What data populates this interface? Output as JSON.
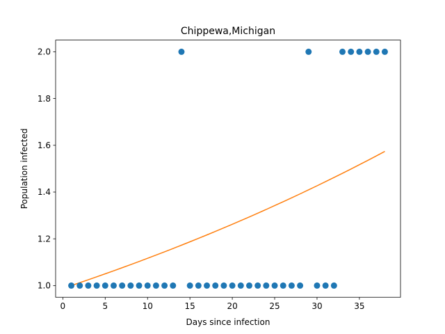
{
  "chart_data": {
    "type": "scatter",
    "title": "Chippewa,Michigan",
    "xlabel": "Days since infection",
    "ylabel": "Population infected",
    "xlim": [
      -0.85,
      39.85
    ],
    "ylim": [
      0.95,
      2.05
    ],
    "xticks": [
      0,
      5,
      10,
      15,
      20,
      25,
      30,
      35
    ],
    "yticks": [
      1.0,
      1.2,
      1.4,
      1.6,
      1.8,
      2.0
    ],
    "xtick_labels": [
      "0",
      "5",
      "10",
      "15",
      "20",
      "25",
      "30",
      "35"
    ],
    "ytick_labels": [
      "1.0",
      "1.2",
      "1.4",
      "1.6",
      "1.8",
      "2.0"
    ],
    "grid": false,
    "series": [
      {
        "kind": "scatter",
        "color": "#1f77b4",
        "x": [
          1,
          2,
          3,
          4,
          5,
          6,
          7,
          8,
          9,
          10,
          11,
          12,
          13,
          14,
          15,
          16,
          17,
          18,
          19,
          20,
          21,
          22,
          23,
          24,
          25,
          26,
          27,
          28,
          29,
          30,
          31,
          32,
          33,
          34,
          35,
          36,
          37,
          38
        ],
        "y": [
          1,
          1,
          1,
          1,
          1,
          1,
          1,
          1,
          1,
          1,
          1,
          1,
          1,
          2,
          1,
          1,
          1,
          1,
          1,
          1,
          1,
          1,
          1,
          1,
          1,
          1,
          1,
          1,
          2,
          1,
          1,
          1,
          2,
          2,
          2,
          2,
          2,
          2
        ]
      },
      {
        "kind": "line",
        "color": "#ff7f0e",
        "x": [
          1,
          2,
          3,
          4,
          5,
          6,
          7,
          8,
          9,
          10,
          11,
          12,
          13,
          14,
          15,
          16,
          17,
          18,
          19,
          20,
          21,
          22,
          23,
          24,
          25,
          26,
          27,
          28,
          29,
          30,
          31,
          32,
          33,
          34,
          35,
          36,
          37,
          38
        ],
        "y": [
          1.0,
          1.0123,
          1.0248,
          1.0375,
          1.0503,
          1.0632,
          1.0763,
          1.0896,
          1.103,
          1.1166,
          1.1304,
          1.1443,
          1.1584,
          1.1727,
          1.1872,
          1.2018,
          1.2166,
          1.2316,
          1.2468,
          1.2622,
          1.2778,
          1.2935,
          1.3095,
          1.3256,
          1.342,
          1.3585,
          1.3753,
          1.3922,
          1.4094,
          1.4268,
          1.4444,
          1.4622,
          1.4802,
          1.4985,
          1.517,
          1.5357,
          1.5546,
          1.5738
        ]
      }
    ]
  }
}
